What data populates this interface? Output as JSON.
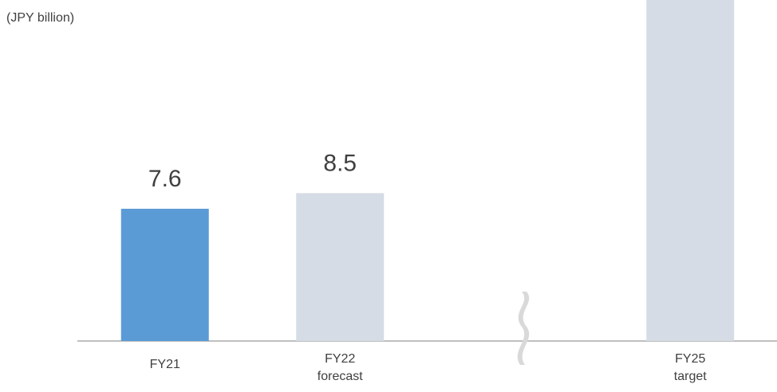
{
  "chart_data": {
    "type": "bar",
    "unit_label": "(JPY billion)",
    "categories": [
      "FY21",
      "FY22\nforecast",
      null,
      "FY25\ntarget"
    ],
    "values": [
      7.6,
      8.5,
      null,
      19.8
    ],
    "value_labels": [
      "7.6",
      "8.5",
      null,
      null
    ],
    "colors": [
      "#5b9bd5",
      "#d6dce5",
      null,
      "#d6dce5"
    ],
    "ylim": [
      0,
      19.6
    ]
  }
}
